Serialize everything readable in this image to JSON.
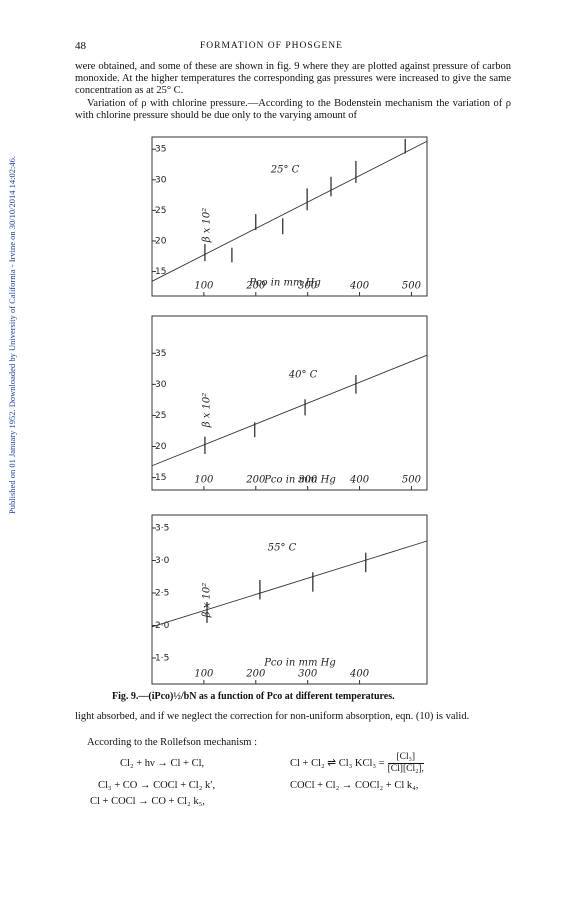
{
  "header": {
    "page_number": "48",
    "title": "FORMATION OF PHOSGENE"
  },
  "watermark": "Published on 01 January 1952. Downloaded by University of California - Irvine on 30/10/2014 14:02:46.",
  "paragraphs": [
    "were obtained, and some of these are shown in fig. 9 where they are plotted against pressure of carbon monoxide. At the higher temperatures the corresponding gas pressures were increased to give the same concentration as at 25° C.",
    "Variation of ρ with chlorine pressure.—According to the Bodenstein mechanism the variation of ρ with chlorine pressure should be due only to the varying amount of"
  ],
  "chart_data": [
    {
      "type": "scatter",
      "annotation": "25° C",
      "ylabel": "β x 10²",
      "xlabel": "Pco in mm Hg",
      "xlim": [
        0,
        530
      ],
      "ylim": [
        11,
        37
      ],
      "xticks": [
        100,
        200,
        300,
        400,
        500
      ],
      "yticks": [
        15,
        20,
        25,
        30,
        35
      ],
      "series": [
        {
          "color": "#222",
          "x": [
            102,
            154,
            200,
            252,
            299,
            345,
            393,
            488
          ],
          "values": [
            18.1,
            17.7,
            23.1,
            22.4,
            26.8,
            28.9,
            31.3,
            35.5
          ],
          "errors": [
            1.4,
            1.2,
            1.3,
            1.3,
            1.8,
            1.6,
            1.8,
            1.2
          ]
        }
      ],
      "fit": {
        "x": [
          0,
          530
        ],
        "values": [
          13.4,
          36.3
        ]
      }
    },
    {
      "type": "scatter",
      "annotation": "40° C",
      "ylabel": "β x 10²",
      "xlabel": "Pco in mm Hg",
      "xlim": [
        0,
        530
      ],
      "ylim": [
        13,
        41
      ],
      "xticks": [
        100,
        200,
        300,
        400,
        500
      ],
      "yticks": [
        15,
        20,
        25,
        30,
        35
      ],
      "series": [
        {
          "color": "#222",
          "x": [
            102,
            198,
            295,
            393
          ],
          "values": [
            20.2,
            22.7,
            26.3,
            30.0
          ],
          "errors": [
            1.4,
            1.2,
            1.3,
            1.5
          ]
        }
      ],
      "fit": {
        "x": [
          0,
          530
        ],
        "values": [
          16.9,
          34.7
        ]
      }
    },
    {
      "type": "scatter",
      "annotation": "55° C",
      "ylabel": "β x 10²",
      "xlabel": "Pco in mm Hg",
      "xlim": [
        0,
        530
      ],
      "ylim": [
        1.1,
        3.7
      ],
      "xticks": [
        100,
        200,
        300,
        400
      ],
      "yticks": [
        {
          "value": 1.5,
          "label": "1·5"
        },
        {
          "value": 2.0,
          "label": "2·0"
        },
        {
          "value": 2.5,
          "label": "2·5"
        },
        {
          "value": 3.0,
          "label": "3·0"
        },
        {
          "value": 3.5,
          "label": "3·5"
        }
      ],
      "series": [
        {
          "color": "#222",
          "x": [
            106,
            208,
            310,
            412
          ],
          "values": [
            2.2,
            2.55,
            2.67,
            2.97
          ],
          "errors": [
            0.16,
            0.15,
            0.15,
            0.15
          ]
        }
      ],
      "fit": {
        "x": [
          0,
          530
        ],
        "values": [
          1.98,
          3.3
        ]
      }
    }
  ],
  "caption": "Fig. 9.—(iPco)½/bN as a function of Pco at different temperatures.",
  "paragraphs_after": [
    "light absorbed, and if we neglect the correction for non-uniform absorption, eqn. (10) is valid.",
    "According to the Rollefson mechanism :"
  ],
  "equations": [
    {
      "text": "Cl₂ + hν → Cl + Cl,"
    },
    {
      "text": "Cl + Cl₂ ⇌ Cl₃   KCl₃ =",
      "numerator": "[Cl₃]",
      "denominator": "[Cl][Cl₂],"
    },
    {
      "text": "Cl₃ + CO → COCl + Cl₂   k′,"
    },
    {
      "text": "COCl + Cl₂ → COCl₂ + Cl   k₄,"
    },
    {
      "text": "Cl + COCl → CO + Cl₂   k₅,"
    }
  ]
}
